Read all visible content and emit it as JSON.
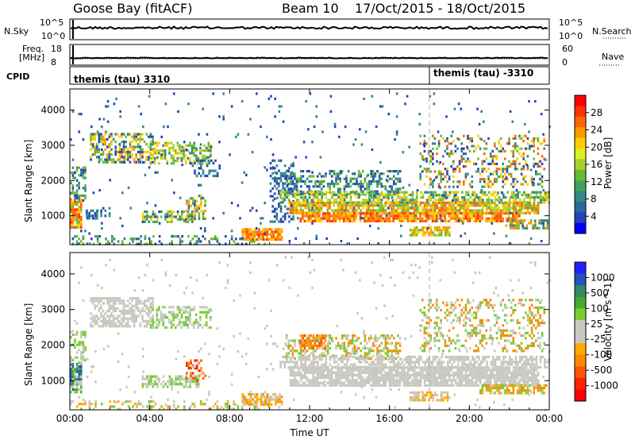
{
  "header": {
    "station": "Goose Bay (fitACF)",
    "beam": "Beam 10",
    "date_range": "17/Oct/2015 - 18/Oct/2015"
  },
  "strips": {
    "nsky": {
      "label": "N.Sky",
      "ticks": [
        "10^5",
        "10^0"
      ]
    },
    "nsearch": {
      "label": "N.Search",
      "ticks": [
        "10^5",
        "10^0"
      ]
    },
    "freq": {
      "label": [
        "Freq.",
        "[MHz]"
      ],
      "ticks": [
        "18",
        "8"
      ]
    },
    "nave": {
      "label": "Nave",
      "ticks": [
        "60",
        "0"
      ]
    },
    "cpid": {
      "label": "CPID",
      "segments": [
        {
          "text": "themis (tau) 3310",
          "start_hour": 0
        },
        {
          "text": "themis (tau) -3310",
          "start_hour": 18
        }
      ]
    }
  },
  "chart_data": [
    {
      "type": "heatmap",
      "quantity": "Power",
      "colorbar_label": "Power [dB]",
      "colorbar_ticks": [
        "28",
        "24",
        "20",
        "16",
        "12",
        "8",
        "4"
      ],
      "colorbar_colors": [
        "#ff0000",
        "#ff3300",
        "#ff6600",
        "#ff9900",
        "#ffcc00",
        "#ddee22",
        "#aad02a",
        "#66bb33",
        "#44a060",
        "#338880",
        "#2a6a9a",
        "#2244bb",
        "#0000ff"
      ],
      "ylabel": "Slant Range [km]",
      "xlim": [
        0,
        24
      ],
      "ylim": [
        180,
        4600
      ],
      "yticks": [
        "1000",
        "2000",
        "3000",
        "4000"
      ],
      "ytick_values": [
        1000,
        2000,
        3000,
        4000
      ],
      "marker_hour": 18,
      "regions": [
        {
          "x": [
            0.0,
            0.6
          ],
          "y": [
            700,
            1500
          ],
          "colors": [
            "#ff3300",
            "#ff6600",
            "#ff9900",
            "#ffcc00",
            "#66bb33"
          ],
          "density": 0.9
        },
        {
          "x": [
            0.0,
            0.8
          ],
          "y": [
            1500,
            2400
          ],
          "colors": [
            "#2244bb",
            "#338880",
            "#66bb33"
          ],
          "density": 0.5
        },
        {
          "x": [
            0.8,
            2.0
          ],
          "y": [
            900,
            1250
          ],
          "colors": [
            "#2244bb",
            "#338880"
          ],
          "density": 0.35
        },
        {
          "x": [
            1.0,
            4.2
          ],
          "y": [
            2550,
            3350
          ],
          "colors": [
            "#2244bb",
            "#338880",
            "#66bb33",
            "#ffcc00",
            "#ff9900"
          ],
          "density": 0.55
        },
        {
          "x": [
            4.0,
            7.0
          ],
          "y": [
            2500,
            3100
          ],
          "colors": [
            "#338880",
            "#66bb33",
            "#aad02a",
            "#ffcc00"
          ],
          "density": 0.5
        },
        {
          "x": [
            6.0,
            7.6
          ],
          "y": [
            2100,
            2600
          ],
          "colors": [
            "#2244bb",
            "#338880"
          ],
          "density": 0.35
        },
        {
          "x": [
            3.6,
            6.2
          ],
          "y": [
            800,
            1150
          ],
          "colors": [
            "#2244bb",
            "#338880",
            "#66bb33",
            "#ffcc00"
          ],
          "density": 0.55
        },
        {
          "x": [
            5.8,
            6.8
          ],
          "y": [
            900,
            1600
          ],
          "colors": [
            "#338880",
            "#66bb33",
            "#ffcc00",
            "#ff9900"
          ],
          "density": 0.5
        },
        {
          "x": [
            0.0,
            10.0
          ],
          "y": [
            200,
            450
          ],
          "colors": [
            "#2244bb",
            "#338880",
            "#66bb33"
          ],
          "density": 0.3
        },
        {
          "x": [
            8.6,
            10.6
          ],
          "y": [
            300,
            650
          ],
          "colors": [
            "#ff3300",
            "#ff6600",
            "#ff9900",
            "#ffcc00"
          ],
          "density": 0.8
        },
        {
          "x": [
            10.0,
            11.2
          ],
          "y": [
            800,
            2600
          ],
          "colors": [
            "#2244bb",
            "#338880"
          ],
          "density": 0.35
        },
        {
          "x": [
            10.8,
            16.5
          ],
          "y": [
            1600,
            2300
          ],
          "colors": [
            "#2244bb",
            "#338880",
            "#66bb33"
          ],
          "density": 0.45
        },
        {
          "x": [
            10.5,
            24.0
          ],
          "y": [
            1400,
            1700
          ],
          "colors": [
            "#338880",
            "#66bb33",
            "#aad02a",
            "#ffcc00"
          ],
          "density": 0.6
        },
        {
          "x": [
            11.0,
            23.5
          ],
          "y": [
            1050,
            1400
          ],
          "colors": [
            "#66bb33",
            "#aad02a",
            "#ffcc00",
            "#ff9900",
            "#ff6600"
          ],
          "density": 0.8
        },
        {
          "x": [
            11.5,
            22.5
          ],
          "y": [
            850,
            1100
          ],
          "colors": [
            "#ff9900",
            "#ff6600",
            "#ff3300",
            "#ffcc00"
          ],
          "density": 0.8
        },
        {
          "x": [
            17.0,
            19.0
          ],
          "y": [
            480,
            700
          ],
          "colors": [
            "#ff9900",
            "#ffcc00",
            "#66bb33"
          ],
          "density": 0.7
        },
        {
          "x": [
            21.8,
            23.9
          ],
          "y": [
            650,
            900
          ],
          "colors": [
            "#66bb33",
            "#338880",
            "#ff9900"
          ],
          "density": 0.6
        },
        {
          "x": [
            17.5,
            23.8
          ],
          "y": [
            1800,
            3300
          ],
          "colors": [
            "#2244bb",
            "#338880",
            "#66bb33",
            "#ffcc00",
            "#ff6600"
          ],
          "density": 0.3
        },
        {
          "x": [
            0.0,
            24.0
          ],
          "y": [
            200,
            4500
          ],
          "colors": [
            "#2244bb",
            "#338880"
          ],
          "density": 0.02
        }
      ]
    },
    {
      "type": "heatmap",
      "quantity": "Velocity",
      "colorbar_label": "Velocity [m s^-1]",
      "colorbar_ticks": [
        "1000",
        "500",
        "100",
        "25",
        "-25",
        "-100",
        "-500",
        "-1000"
      ],
      "colorbar_colors": [
        "#2222ff",
        "#2255bb",
        "#338866",
        "#44aa33",
        "#77cc33",
        "#c8c8c0",
        "#c8c8c0",
        "#ffaa00",
        "#ff8800",
        "#ff5500",
        "#ff2200",
        "#ff0000"
      ],
      "ylabel": "Slant Range [km]",
      "xlabel": "Time UT",
      "xlim": [
        0,
        24
      ],
      "ylim": [
        180,
        4600
      ],
      "yticks": [
        "1000",
        "2000",
        "3000",
        "4000"
      ],
      "ytick_values": [
        1000,
        2000,
        3000,
        4000
      ],
      "xticks": [
        "00:00",
        "04:00",
        "08:00",
        "12:00",
        "16:00",
        "20:00",
        "00:00"
      ],
      "xtick_values": [
        0,
        4,
        8,
        12,
        16,
        20,
        24
      ],
      "marker_hour": 18,
      "regions": [
        {
          "x": [
            0.0,
            0.6
          ],
          "y": [
            700,
            1500
          ],
          "colors": [
            "#338866",
            "#44aa33",
            "#77cc33",
            "#2255bb",
            "#c8c8c0"
          ],
          "density": 0.9
        },
        {
          "x": [
            0.0,
            0.8
          ],
          "y": [
            1500,
            2400
          ],
          "colors": [
            "#c8c8c0",
            "#77cc33"
          ],
          "density": 0.4
        },
        {
          "x": [
            1.0,
            4.2
          ],
          "y": [
            2550,
            3350
          ],
          "colors": [
            "#c8c8c0"
          ],
          "density": 0.6
        },
        {
          "x": [
            4.0,
            7.0
          ],
          "y": [
            2500,
            3100
          ],
          "colors": [
            "#c8c8c0",
            "#77cc33"
          ],
          "density": 0.5
        },
        {
          "x": [
            3.6,
            6.4
          ],
          "y": [
            800,
            1150
          ],
          "colors": [
            "#c8c8c0",
            "#77cc33"
          ],
          "density": 0.6
        },
        {
          "x": [
            5.8,
            6.8
          ],
          "y": [
            1000,
            1600
          ],
          "colors": [
            "#ff5500",
            "#ff2200",
            "#ff8800"
          ],
          "density": 0.4
        },
        {
          "x": [
            0.0,
            10.0
          ],
          "y": [
            200,
            450
          ],
          "colors": [
            "#c8c8c0",
            "#ffaa00",
            "#77cc33"
          ],
          "density": 0.3
        },
        {
          "x": [
            8.6,
            10.6
          ],
          "y": [
            300,
            650
          ],
          "colors": [
            "#ffaa00",
            "#ff8800",
            "#c8c8c0"
          ],
          "density": 0.7
        },
        {
          "x": [
            10.8,
            16.5
          ],
          "y": [
            1600,
            2300
          ],
          "colors": [
            "#c8c8c0",
            "#77cc33",
            "#ff8800"
          ],
          "density": 0.45
        },
        {
          "x": [
            11.5,
            12.8
          ],
          "y": [
            1900,
            2300
          ],
          "colors": [
            "#ff5500",
            "#ff8800",
            "#ffaa00"
          ],
          "density": 0.6
        },
        {
          "x": [
            10.5,
            24.0
          ],
          "y": [
            1400,
            1700
          ],
          "colors": [
            "#c8c8c0"
          ],
          "density": 0.6
        },
        {
          "x": [
            11.0,
            23.5
          ],
          "y": [
            850,
            1400
          ],
          "colors": [
            "#c8c8c0"
          ],
          "density": 0.85
        },
        {
          "x": [
            17.0,
            19.0
          ],
          "y": [
            480,
            700
          ],
          "colors": [
            "#c8c8c0",
            "#ffaa00"
          ],
          "density": 0.7
        },
        {
          "x": [
            20.5,
            23.9
          ],
          "y": [
            650,
            900
          ],
          "colors": [
            "#77cc33",
            "#ffaa00",
            "#ff8800"
          ],
          "density": 0.6
        },
        {
          "x": [
            17.5,
            23.8
          ],
          "y": [
            1800,
            3300
          ],
          "colors": [
            "#c8c8c0",
            "#77cc33",
            "#ff8800"
          ],
          "density": 0.3
        },
        {
          "x": [
            0.0,
            24.0
          ],
          "y": [
            200,
            4500
          ],
          "colors": [
            "#c8c8c0"
          ],
          "density": 0.02
        }
      ]
    }
  ]
}
